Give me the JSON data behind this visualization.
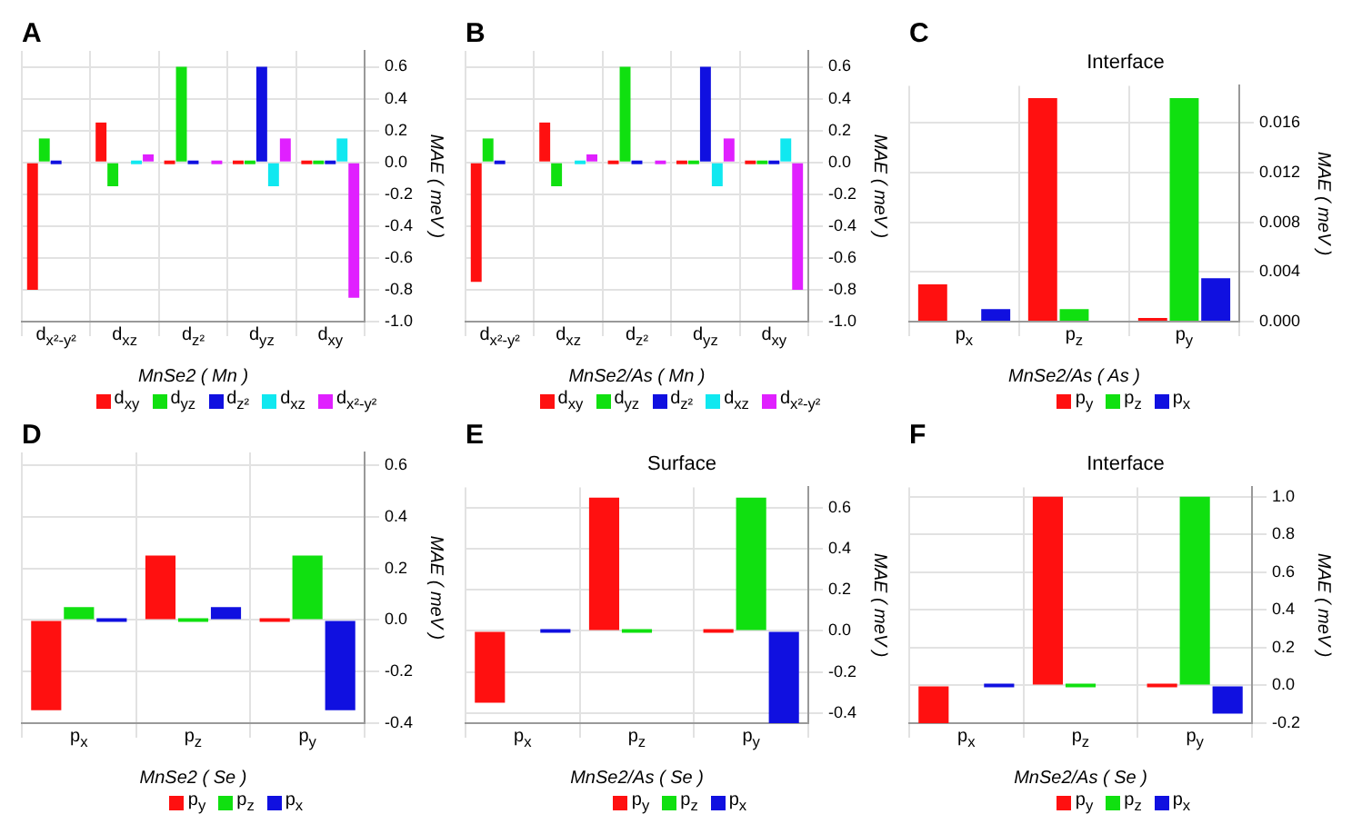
{
  "chart_data": [
    {
      "type": "bar",
      "title": "A",
      "xlabel": "MnSe2 ( Mn )",
      "ylabel": "MAE ( meV )",
      "categories": [
        "d$_{x²-y²}$",
        "d$_{xz}$",
        "d$_{z²}$",
        "d$_{yz}$",
        "d$_{xy}$"
      ],
      "series": [
        {
          "name": "d$_{xy}$",
          "color": "#ff1010",
          "values": [
            -0.8,
            0.25,
            0,
            0,
            0
          ]
        },
        {
          "name": "d$_{yz}$",
          "color": "#10e010",
          "values": [
            0.15,
            -0.15,
            0.6,
            0,
            0
          ]
        },
        {
          "name": "d$_{z²}$",
          "color": "#1010e0",
          "values": [
            0,
            null,
            0,
            0.6,
            0
          ]
        },
        {
          "name": "d$_{xz}$",
          "color": "#10e8f0",
          "values": [
            null,
            0,
            null,
            -0.15,
            0.15
          ]
        },
        {
          "name": "d$_{x²-y²}$",
          "color": "#e020ff",
          "values": [
            null,
            0.05,
            0,
            0.15,
            -0.85
          ]
        }
      ],
      "ylim": [
        -1,
        0.7
      ],
      "yticks": [
        {
          "value": -1,
          "label": "-1.0"
        },
        -0.8,
        -0.6,
        -0.4,
        -0.2,
        {
          "value": 0,
          "label": "0.0"
        },
        0.2,
        0.4,
        0.6
      ],
      "grid": true,
      "legend": "bottom"
    },
    {
      "type": "bar",
      "title": "B",
      "xlabel": "MnSe2/As ( Mn )",
      "ylabel": "MAE ( meV )",
      "categories": [
        "d$_{x²-y²}$",
        "d$_{xz}$",
        "d$_{z²}$",
        "d$_{yz}$",
        "d$_{xy}$"
      ],
      "series": [
        {
          "name": "d$_{xy}$",
          "color": "#ff1010",
          "values": [
            -0.75,
            0.25,
            0,
            0,
            0
          ]
        },
        {
          "name": "d$_{yz}$",
          "color": "#10e010",
          "values": [
            0.15,
            -0.15,
            0.6,
            0,
            0
          ]
        },
        {
          "name": "d$_{z²}$",
          "color": "#1010e0",
          "values": [
            0,
            null,
            0,
            0.6,
            0
          ]
        },
        {
          "name": "d$_{xz}$",
          "color": "#10e8f0",
          "values": [
            null,
            0,
            null,
            -0.15,
            0.15
          ]
        },
        {
          "name": "d$_{x²-y²}$",
          "color": "#e020ff",
          "values": [
            null,
            0.05,
            0,
            0.15,
            -0.8
          ]
        }
      ],
      "ylim": [
        -1,
        0.7
      ],
      "yticks": [
        {
          "value": -1,
          "label": "-1.0"
        },
        -0.8,
        -0.6,
        -0.4,
        -0.2,
        {
          "value": 0,
          "label": "0.0"
        },
        0.2,
        0.4,
        0.6
      ],
      "grid": true,
      "legend": "bottom"
    },
    {
      "type": "bar",
      "title": "C",
      "subtitle": "Interface",
      "xlabel": "MnSe2/As ( As )",
      "ylabel": "MAE ( meV )",
      "categories": [
        "p$_{x}$",
        "p$_{z}$",
        "p$_{y}$"
      ],
      "series": [
        {
          "name": "p$_{y}$",
          "color": "#ff1010",
          "values": [
            0.003,
            0.018,
            0
          ]
        },
        {
          "name": "p$_{z}$",
          "color": "#10e010",
          "values": [
            null,
            0.001,
            0.018
          ]
        },
        {
          "name": "p$_{x}$",
          "color": "#1010e0",
          "values": [
            0.001,
            null,
            0.0035
          ]
        }
      ],
      "ylim": [
        0,
        0.019
      ],
      "yticks": [
        {
          "value": 0,
          "label": "0.000"
        },
        0.004,
        0.008,
        0.012,
        0.016
      ],
      "grid": true,
      "legend": "bottom"
    },
    {
      "type": "bar",
      "title": "D",
      "xlabel": "MnSe2 ( Se )",
      "ylabel": "MAE ( meV )",
      "categories": [
        "p$_{x}$",
        "p$_{z}$",
        "p$_{y}$"
      ],
      "series": [
        {
          "name": "p$_{y}$",
          "color": "#ff1010",
          "values": [
            -0.35,
            0.25,
            0
          ]
        },
        {
          "name": "p$_{z}$",
          "color": "#10e010",
          "values": [
            0.05,
            0,
            0.25
          ]
        },
        {
          "name": "p$_{x}$",
          "color": "#1010e0",
          "values": [
            0,
            0.05,
            -0.35
          ]
        }
      ],
      "ylim": [
        -0.4,
        0.65
      ],
      "yticks": [
        -0.4,
        -0.2,
        {
          "value": 0,
          "label": "0.0"
        },
        0.2,
        0.4,
        0.6
      ],
      "grid": true,
      "legend": "bottom"
    },
    {
      "type": "bar",
      "title": "E",
      "subtitle": "Surface",
      "xlabel": "MnSe2/As ( Se )",
      "ylabel": "MAE ( meV )",
      "categories": [
        "p$_{x}$",
        "p$_{z}$",
        "p$_{y}$"
      ],
      "series": [
        {
          "name": "p$_{y}$",
          "color": "#ff1010",
          "values": [
            -0.35,
            0.65,
            0
          ]
        },
        {
          "name": "p$_{z}$",
          "color": "#10e010",
          "values": [
            null,
            0,
            0.65
          ]
        },
        {
          "name": "p$_{x}$",
          "color": "#1010e0",
          "values": [
            0,
            null,
            -0.45
          ]
        }
      ],
      "ylim": [
        -0.45,
        0.7
      ],
      "yticks": [
        -0.4,
        -0.2,
        {
          "value": 0,
          "label": "0.0"
        },
        0.2,
        0.4,
        0.6
      ],
      "grid": true,
      "legend": "bottom"
    },
    {
      "type": "bar",
      "title": "F",
      "subtitle": "Interface",
      "xlabel": "MnSe2/As ( Se )",
      "ylabel": "MAE ( meV )",
      "categories": [
        "p$_{x}$",
        "p$_{z}$",
        "p$_{y}$"
      ],
      "series": [
        {
          "name": "p$_{y}$",
          "color": "#ff1010",
          "values": [
            -0.2,
            1.0,
            0
          ]
        },
        {
          "name": "p$_{z}$",
          "color": "#10e010",
          "values": [
            null,
            0,
            1.0
          ]
        },
        {
          "name": "p$_{x}$",
          "color": "#1010e0",
          "values": [
            0,
            null,
            -0.15
          ]
        }
      ],
      "ylim": [
        -0.2,
        1.05
      ],
      "yticks": [
        -0.2,
        {
          "value": 0,
          "label": "0.0"
        },
        0.2,
        0.4,
        0.6,
        0.8,
        {
          "value": 1,
          "label": "1.0"
        }
      ],
      "grid": true,
      "legend": "bottom"
    }
  ]
}
